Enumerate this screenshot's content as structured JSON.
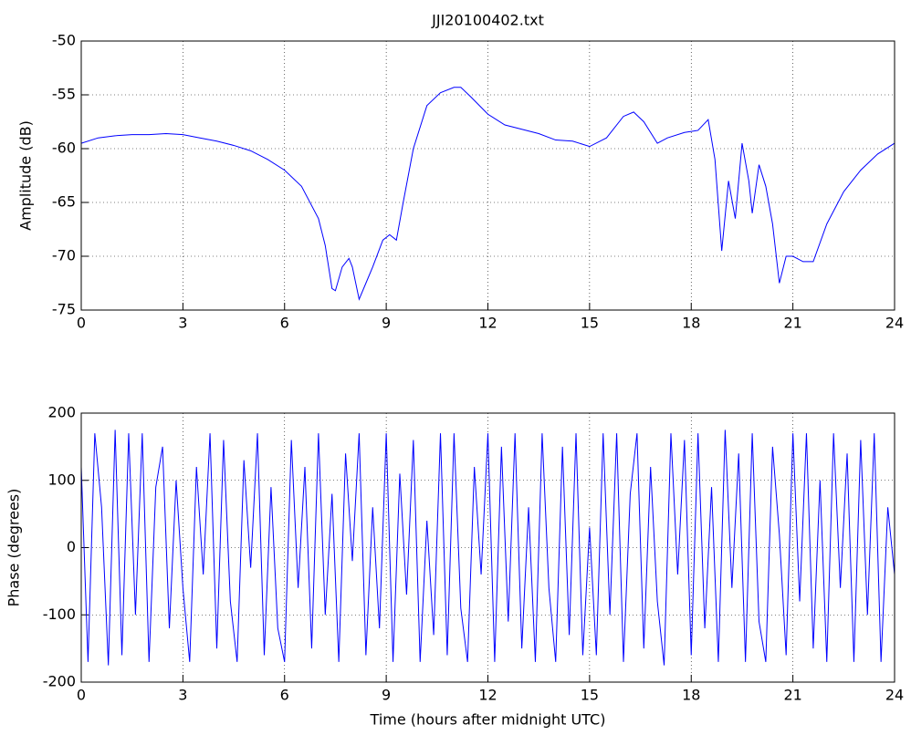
{
  "chart_data": [
    {
      "type": "line",
      "title": "JJI20100402.txt",
      "ylabel": "Amplitude (dB)",
      "grid": true,
      "xlim": [
        0,
        24
      ],
      "xticks": [
        0,
        3,
        6,
        9,
        12,
        15,
        18,
        21,
        24
      ],
      "ylim": [
        -75,
        -50
      ],
      "yticks": [
        -75,
        -70,
        -65,
        -60,
        -55,
        -50
      ],
      "x": [
        0,
        0.5,
        1,
        1.5,
        2,
        2.5,
        3,
        3.5,
        4,
        4.5,
        5,
        5.5,
        6,
        6.5,
        7,
        7.2,
        7.4,
        7.5,
        7.7,
        7.9,
        8,
        8.2,
        8.4,
        8.6,
        8.9,
        9.1,
        9.3,
        9.5,
        9.8,
        10.2,
        10.6,
        11,
        11.2,
        11.5,
        12,
        12.5,
        13,
        13.5,
        14,
        14.5,
        15,
        15.5,
        16,
        16.3,
        16.6,
        17,
        17.3,
        17.8,
        18.2,
        18.5,
        18.7,
        18.9,
        19.1,
        19.3,
        19.5,
        19.7,
        19.8,
        20,
        20.2,
        20.4,
        20.6,
        20.8,
        21,
        21.3,
        21.6,
        22,
        22.5,
        23,
        23.5,
        24
      ],
      "series": [
        {
          "color": "#0000ff",
          "values": [
            -59.5,
            -59,
            -58.8,
            -58.7,
            -58.7,
            -58.6,
            -58.7,
            -59,
            -59.3,
            -59.7,
            -60.2,
            -61,
            -62,
            -63.5,
            -66.5,
            -69,
            -73,
            -73.2,
            -71,
            -70.2,
            -71,
            -74,
            -72.5,
            -71,
            -68.5,
            -68,
            -68.5,
            -65,
            -60,
            -56,
            -54.8,
            -54.3,
            -54.3,
            -55.2,
            -56.8,
            -57.8,
            -58.2,
            -58.6,
            -59.2,
            -59.3,
            -59.8,
            -59,
            -57,
            -56.6,
            -57.5,
            -59.5,
            -59,
            -58.5,
            -58.3,
            -57.3,
            -61,
            -69.5,
            -63,
            -66.5,
            -59.5,
            -63,
            -66,
            -61.5,
            -63.5,
            -67,
            -72.5,
            -70,
            -70,
            -70.5,
            -70.5,
            -67,
            -64,
            -62,
            -60.5,
            -59.5
          ]
        }
      ]
    },
    {
      "type": "line",
      "xlabel": "Time (hours after midnight UTC)",
      "ylabel": "Phase (degrees)",
      "grid": true,
      "xlim": [
        0,
        24
      ],
      "xticks": [
        0,
        3,
        6,
        9,
        12,
        15,
        18,
        21,
        24
      ],
      "ylim": [
        -200,
        200
      ],
      "yticks": [
        -200,
        -100,
        0,
        100,
        200
      ],
      "x": [
        0,
        0.2,
        0.4,
        0.6,
        0.8,
        1,
        1.2,
        1.4,
        1.6,
        1.8,
        2,
        2.2,
        2.4,
        2.6,
        2.8,
        3,
        3.2,
        3.4,
        3.6,
        3.8,
        4,
        4.2,
        4.4,
        4.6,
        4.8,
        5,
        5.2,
        5.4,
        5.6,
        5.8,
        6,
        6.2,
        6.4,
        6.6,
        6.8,
        7,
        7.2,
        7.4,
        7.6,
        7.8,
        8,
        8.2,
        8.4,
        8.6,
        8.8,
        9,
        9.2,
        9.4,
        9.6,
        9.8,
        10,
        10.2,
        10.4,
        10.6,
        10.8,
        11,
        11.2,
        11.4,
        11.6,
        11.8,
        12,
        12.2,
        12.4,
        12.6,
        12.8,
        13,
        13.2,
        13.4,
        13.6,
        13.8,
        14,
        14.2,
        14.4,
        14.6,
        14.8,
        15,
        15.2,
        15.4,
        15.6,
        15.8,
        16,
        16.2,
        16.4,
        16.6,
        16.8,
        17,
        17.2,
        17.4,
        17.6,
        17.8,
        18,
        18.2,
        18.4,
        18.6,
        18.8,
        19,
        19.2,
        19.4,
        19.6,
        19.8,
        20,
        20.2,
        20.4,
        20.6,
        20.8,
        21,
        21.2,
        21.4,
        21.6,
        21.8,
        22,
        22.2,
        22.4,
        22.6,
        22.8,
        23,
        23.2,
        23.4,
        23.6,
        23.8,
        24
      ],
      "series": [
        {
          "color": "#0000ff",
          "values": [
            120,
            -170,
            170,
            60,
            -175,
            175,
            -160,
            170,
            -100,
            170,
            -170,
            90,
            150,
            -120,
            100,
            -60,
            -170,
            120,
            -40,
            170,
            -150,
            160,
            -80,
            -170,
            130,
            -30,
            170,
            -160,
            90,
            -120,
            -170,
            160,
            -60,
            120,
            -150,
            170,
            -100,
            80,
            -170,
            140,
            -20,
            170,
            -160,
            60,
            -120,
            170,
            -170,
            110,
            -70,
            160,
            -170,
            40,
            -130,
            170,
            -160,
            170,
            -90,
            -170,
            120,
            -40,
            170,
            -170,
            150,
            -110,
            170,
            -150,
            60,
            -170,
            170,
            -60,
            -170,
            150,
            -130,
            170,
            -160,
            30,
            -160,
            170,
            -100,
            170,
            -170,
            80,
            170,
            -150,
            120,
            -80,
            -175,
            170,
            -40,
            160,
            -160,
            170,
            -120,
            90,
            -170,
            175,
            -60,
            140,
            -170,
            170,
            -110,
            -170,
            150,
            20,
            -160,
            170,
            -80,
            170,
            -150,
            100,
            -170,
            170,
            -60,
            140,
            -170,
            160,
            -100,
            170,
            -170,
            60,
            -40
          ]
        }
      ]
    }
  ]
}
